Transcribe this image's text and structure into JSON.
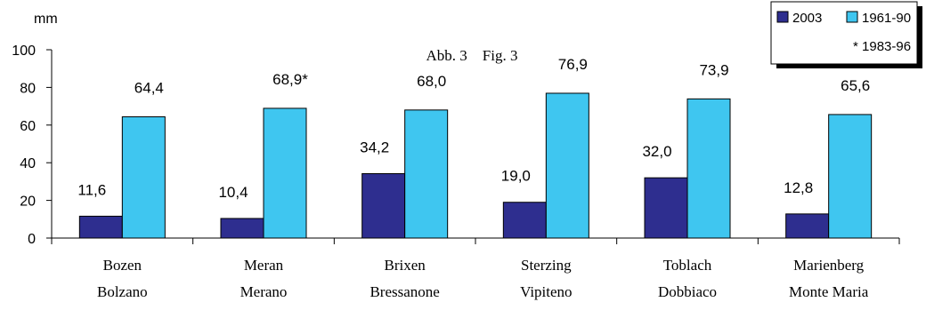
{
  "chart_data": {
    "type": "bar",
    "title": "Abb. 3    Fig. 3",
    "ylabel": "mm",
    "ylim": [
      0,
      100
    ],
    "yticks": [
      0,
      20,
      40,
      60,
      80,
      100
    ],
    "categories": [
      [
        "Bozen",
        "Bolzano"
      ],
      [
        "Meran",
        "Merano"
      ],
      [
        "Brixen",
        "Bressanone"
      ],
      [
        "Sterzing",
        "Vipiteno"
      ],
      [
        "Toblach",
        "Dobbiaco"
      ],
      [
        "Marienberg",
        "Monte Maria"
      ]
    ],
    "series": [
      {
        "name": "2003",
        "color": "#2e2e8f",
        "values": [
          11.6,
          10.4,
          34.2,
          19.0,
          32.0,
          12.8
        ],
        "labels": [
          "11,6",
          "10,4",
          "34,2",
          "19,0",
          "32,0",
          "12,8"
        ]
      },
      {
        "name": "1961-90",
        "color": "#3fc6f0",
        "values": [
          64.4,
          68.9,
          68.0,
          76.9,
          73.9,
          65.6
        ],
        "labels": [
          "64,4",
          "68,9*",
          "68,0",
          "76,9",
          "73,9",
          "65,6"
        ]
      }
    ],
    "legend": {
      "placement": "top-right",
      "note": "* 1983-96"
    },
    "grid": false
  }
}
